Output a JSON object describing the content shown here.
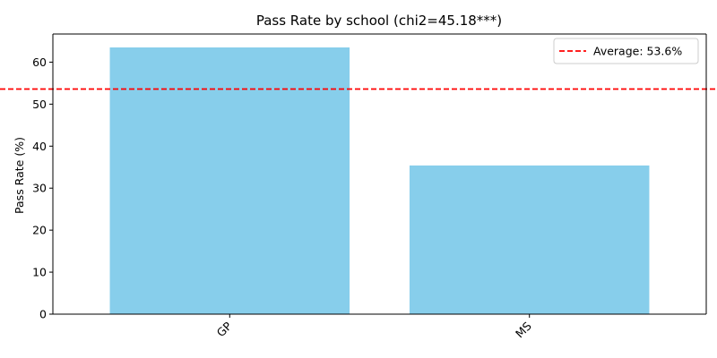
{
  "chart_data": {
    "type": "bar",
    "title": "Pass Rate by school (chi2=45.18***)",
    "xlabel": "",
    "ylabel": "Pass Rate (%)",
    "categories": [
      "GP",
      "MS"
    ],
    "values": [
      63.5,
      35.4
    ],
    "ylim": [
      0,
      66.7
    ],
    "yticks": [
      0,
      10,
      20,
      30,
      40,
      50,
      60
    ],
    "bar_color": "#87ceeb",
    "reference_line": {
      "value": 53.6,
      "label": "Average: 53.6%",
      "color": "#ff0000",
      "style": "dashed"
    },
    "x_tick_rotation": 45,
    "legend": {
      "position": "top-right",
      "entries": [
        "Average: 53.6%"
      ]
    },
    "grid": false
  }
}
